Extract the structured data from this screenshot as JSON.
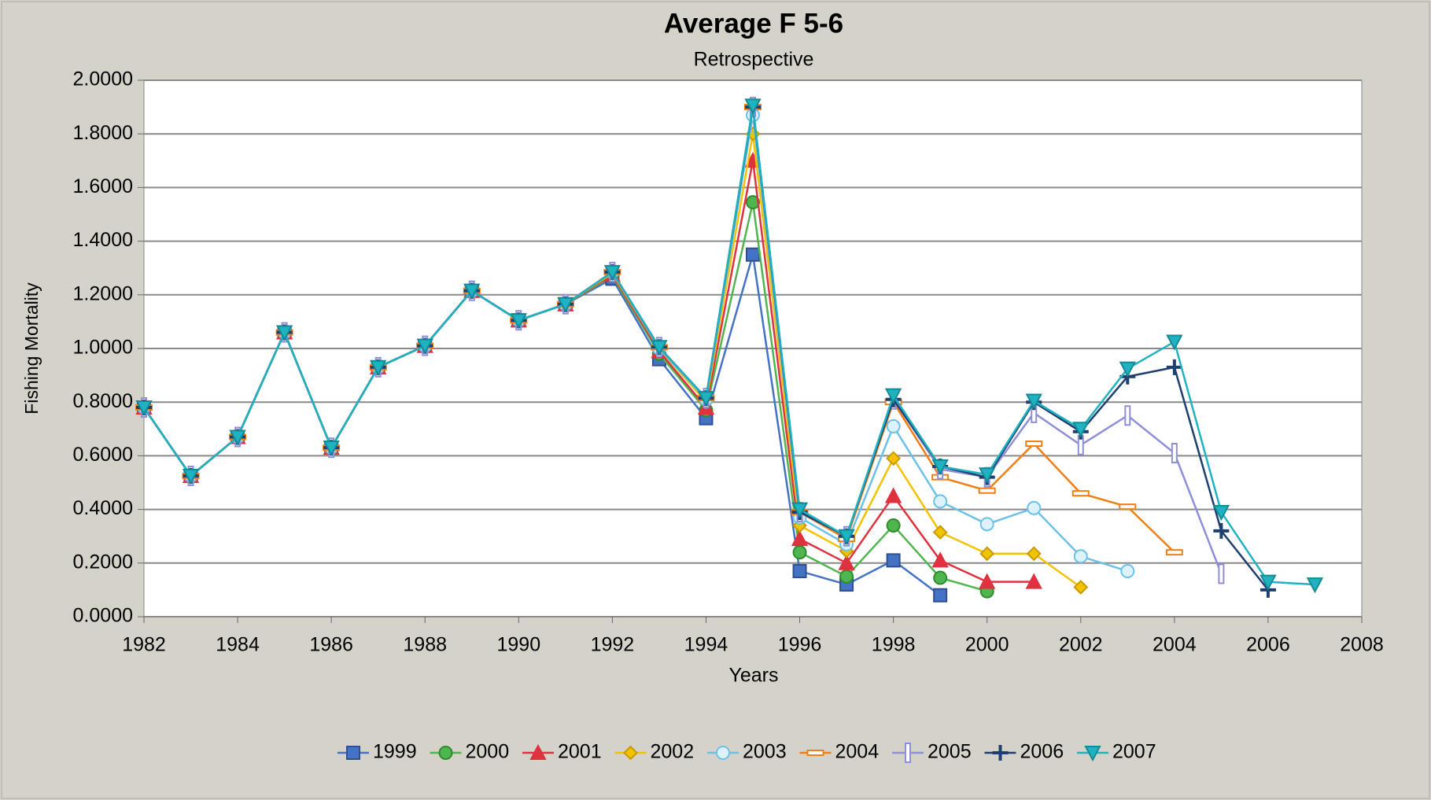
{
  "chart_data": {
    "type": "line",
    "title": "Average F 5-6",
    "subtitle": "Retrospective",
    "x_label": "Years",
    "y_label": "Fishing Mortality",
    "x": [
      1982,
      1983,
      1984,
      1985,
      1986,
      1987,
      1988,
      1989,
      1990,
      1991,
      1992,
      1993,
      1994,
      1995,
      1996,
      1997,
      1998,
      1999,
      2000,
      2001,
      2002,
      2003,
      2004,
      2005,
      2006,
      2007
    ],
    "xlim": [
      1982,
      2008
    ],
    "xticks": [
      1982,
      1984,
      1986,
      1988,
      1990,
      1992,
      1994,
      1996,
      1998,
      2000,
      2002,
      2004,
      2006,
      2008
    ],
    "ylim": [
      0,
      2
    ],
    "yticks": [
      {
        "value": 0,
        "label": "0.0000"
      },
      {
        "value": 0.2,
        "label": "0.2000"
      },
      {
        "value": 0.4,
        "label": "0.4000"
      },
      {
        "value": 0.6,
        "label": "0.6000"
      },
      {
        "value": 0.8,
        "label": "0.8000"
      },
      {
        "value": 1.0,
        "label": "1.0000"
      },
      {
        "value": 1.2,
        "label": "1.2000"
      },
      {
        "value": 1.4,
        "label": "1.4000"
      },
      {
        "value": 1.6,
        "label": "1.6000"
      },
      {
        "value": 1.8,
        "label": "1.8000"
      },
      {
        "value": 2.0,
        "label": "2.0000"
      }
    ],
    "grid": true,
    "legend": "bottom",
    "series": [
      {
        "name": "1999",
        "color": "#4472c4",
        "marker": "square",
        "values": [
          0.78,
          0.525,
          0.67,
          1.06,
          0.63,
          0.93,
          1.01,
          1.215,
          1.105,
          1.165,
          1.26,
          0.96,
          0.74,
          1.35,
          0.17,
          0.12,
          0.21,
          0.08,
          null,
          null,
          null,
          null,
          null,
          null,
          null,
          null
        ]
      },
      {
        "name": "2000",
        "color": "#4fb64f",
        "marker": "circle",
        "values": [
          0.78,
          0.525,
          0.67,
          1.06,
          0.63,
          0.93,
          1.01,
          1.215,
          1.105,
          1.165,
          1.27,
          0.98,
          0.77,
          1.545,
          0.24,
          0.15,
          0.34,
          0.145,
          0.095,
          null,
          null,
          null,
          null,
          null,
          null,
          null
        ]
      },
      {
        "name": "2001",
        "color": "#e0313f",
        "marker": "triangle",
        "values": [
          0.78,
          0.525,
          0.67,
          1.06,
          0.63,
          0.93,
          1.01,
          1.215,
          1.105,
          1.165,
          1.275,
          0.99,
          0.78,
          1.7,
          0.29,
          0.2,
          0.45,
          0.21,
          0.13,
          0.13,
          null,
          null,
          null,
          null,
          null,
          null
        ]
      },
      {
        "name": "2002",
        "color": "#f3c300",
        "marker": "diamond",
        "values": [
          0.78,
          0.525,
          0.67,
          1.06,
          0.63,
          0.93,
          1.01,
          1.215,
          1.105,
          1.165,
          1.28,
          1.0,
          0.8,
          1.8,
          0.34,
          0.245,
          0.59,
          0.315,
          0.235,
          0.235,
          0.11,
          null,
          null,
          null,
          null,
          null
        ]
      },
      {
        "name": "2003",
        "color": "#6cc1e8",
        "marker": "ring",
        "values": [
          0.78,
          0.525,
          0.67,
          1.06,
          0.63,
          0.93,
          1.01,
          1.215,
          1.105,
          1.165,
          1.285,
          1.0,
          0.81,
          1.87,
          0.37,
          0.27,
          0.71,
          0.43,
          0.345,
          0.405,
          0.225,
          0.17,
          null,
          null,
          null,
          null
        ]
      },
      {
        "name": "2004",
        "color": "#f07f13",
        "marker": "dash",
        "values": [
          0.78,
          0.525,
          0.67,
          1.06,
          0.63,
          0.93,
          1.01,
          1.215,
          1.105,
          1.165,
          1.285,
          1.005,
          0.815,
          1.9,
          0.39,
          0.29,
          0.8,
          0.52,
          0.47,
          0.645,
          0.46,
          0.41,
          0.24,
          null,
          null,
          null
        ]
      },
      {
        "name": "2005",
        "color": "#8e8fd8",
        "marker": "bar",
        "values": [
          0.78,
          0.525,
          0.67,
          1.06,
          0.63,
          0.93,
          1.01,
          1.215,
          1.105,
          1.165,
          1.285,
          1.005,
          0.815,
          1.9,
          0.39,
          0.3,
          0.81,
          0.55,
          0.52,
          0.76,
          0.64,
          0.75,
          0.61,
          0.16,
          null,
          null
        ]
      },
      {
        "name": "2006",
        "color": "#1f3f6e",
        "marker": "plus",
        "values": [
          0.78,
          0.525,
          0.67,
          1.06,
          0.63,
          0.93,
          1.01,
          1.215,
          1.105,
          1.165,
          1.285,
          1.005,
          0.815,
          1.9,
          0.39,
          0.3,
          0.81,
          0.56,
          0.52,
          0.8,
          0.69,
          0.895,
          0.93,
          0.32,
          0.1,
          null
        ]
      },
      {
        "name": "2007",
        "color": "#1fb3c2",
        "marker": "down-triangle",
        "values": [
          0.78,
          0.525,
          0.67,
          1.06,
          0.63,
          0.93,
          1.01,
          1.215,
          1.105,
          1.165,
          1.285,
          1.005,
          0.815,
          1.905,
          0.4,
          0.3,
          0.825,
          0.56,
          0.53,
          0.805,
          0.7,
          0.925,
          1.025,
          0.39,
          0.13,
          0.12
        ]
      }
    ]
  }
}
